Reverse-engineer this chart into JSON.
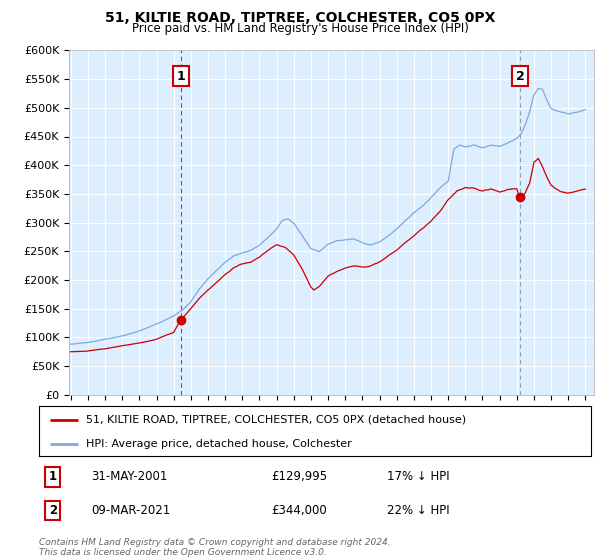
{
  "title": "51, KILTIE ROAD, TIPTREE, COLCHESTER, CO5 0PX",
  "subtitle": "Price paid vs. HM Land Registry's House Price Index (HPI)",
  "legend_label_red": "51, KILTIE ROAD, TIPTREE, COLCHESTER, CO5 0PX (detached house)",
  "legend_label_blue": "HPI: Average price, detached house, Colchester",
  "annotation1_date": "31-MAY-2001",
  "annotation1_price": "£129,995",
  "annotation1_hpi": "17% ↓ HPI",
  "annotation2_date": "09-MAR-2021",
  "annotation2_price": "£344,000",
  "annotation2_hpi": "22% ↓ HPI",
  "footer": "Contains HM Land Registry data © Crown copyright and database right 2024.\nThis data is licensed under the Open Government Licence v3.0.",
  "ylim": [
    0,
    600000
  ],
  "yticks": [
    0,
    50000,
    100000,
    150000,
    200000,
    250000,
    300000,
    350000,
    400000,
    450000,
    500000,
    550000,
    600000
  ],
  "ytick_labels": [
    "£0",
    "£50K",
    "£100K",
    "£150K",
    "£200K",
    "£250K",
    "£300K",
    "£350K",
    "£400K",
    "£450K",
    "£500K",
    "£550K",
    "£600K"
  ],
  "red_color": "#cc0000",
  "blue_color": "#7aaadd",
  "bg_color": "#ddeeff",
  "marker1_x": 2001.42,
  "marker1_y": 129995,
  "marker2_x": 2021.19,
  "marker2_y": 344000,
  "dashed_x1": 2001.42,
  "dashed_x2": 2021.19,
  "xmin": 1995.0,
  "xmax": 2025.5
}
